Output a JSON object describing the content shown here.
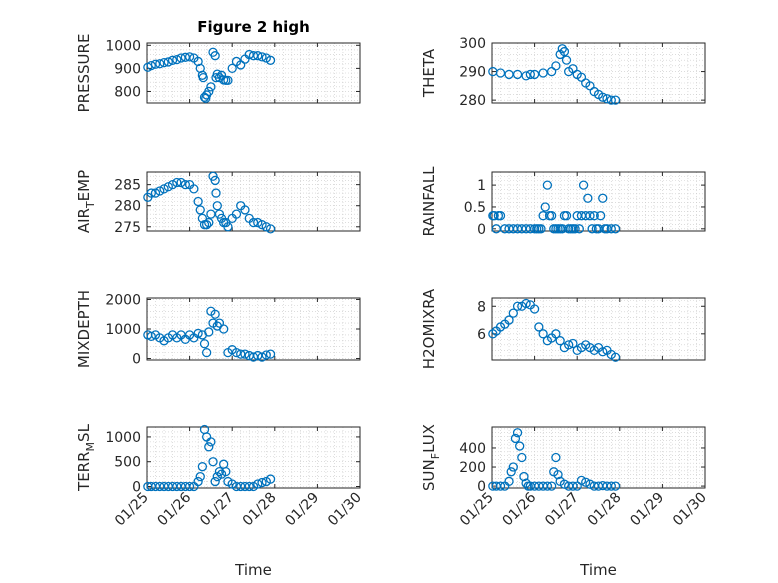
{
  "figure": {
    "marker_color": "#0072BD"
  },
  "x_axis": {
    "label": "Time",
    "tick_labels": [
      "01/25",
      "01/26",
      "01/27",
      "01/28",
      "01/29",
      "01/30"
    ],
    "xlim": [
      0,
      5
    ]
  },
  "chart_data": [
    {
      "type": "scatter",
      "title": "Figure 2 high",
      "ylabel": "PRESSURE",
      "ylim": [
        750,
        1010
      ],
      "yticks": [
        800,
        900,
        1000
      ],
      "grid": true,
      "x": [
        0.02,
        0.1,
        0.2,
        0.3,
        0.4,
        0.5,
        0.6,
        0.7,
        0.8,
        0.9,
        1.0,
        1.1,
        1.2,
        1.25,
        1.3,
        1.32,
        1.35,
        1.38,
        1.4,
        1.45,
        1.5,
        1.55,
        1.6,
        1.62,
        1.65,
        1.7,
        1.75,
        1.8,
        1.85,
        1.9,
        2.0,
        2.1,
        2.2,
        2.3,
        2.4,
        2.5,
        2.6,
        2.7,
        2.8,
        2.9
      ],
      "y": [
        905,
        912,
        918,
        920,
        925,
        928,
        935,
        938,
        945,
        948,
        950,
        945,
        930,
        900,
        870,
        860,
        775,
        770,
        785,
        800,
        820,
        970,
        955,
        860,
        875,
        860,
        870,
        850,
        848,
        848,
        900,
        930,
        915,
        940,
        960,
        955,
        955,
        950,
        945,
        935
      ]
    },
    {
      "type": "scatter",
      "title": "",
      "ylabel": "THETA",
      "ylim": [
        279,
        300
      ],
      "yticks": [
        280,
        290,
        300
      ],
      "grid": true,
      "x": [
        0.02,
        0.2,
        0.4,
        0.6,
        0.8,
        0.9,
        1.0,
        1.2,
        1.4,
        1.5,
        1.6,
        1.65,
        1.7,
        1.75,
        1.8,
        1.9,
        2.0,
        2.1,
        2.2,
        2.3,
        2.4,
        2.5,
        2.6,
        2.7,
        2.8,
        2.9
      ],
      "y": [
        290,
        289.5,
        289,
        289,
        288.5,
        289,
        289,
        289.5,
        290,
        292,
        296,
        298,
        297,
        294,
        290,
        291,
        289,
        288,
        286,
        285,
        283,
        282,
        281,
        280.5,
        280,
        280
      ]
    },
    {
      "type": "scatter",
      "title": "",
      "ylabel": "AIR_TEMP",
      "ylim": [
        274,
        288
      ],
      "yticks": [
        275,
        280,
        285
      ],
      "grid": true,
      "x": [
        0.02,
        0.1,
        0.2,
        0.3,
        0.4,
        0.5,
        0.6,
        0.7,
        0.8,
        0.9,
        1.0,
        1.1,
        1.2,
        1.25,
        1.3,
        1.35,
        1.4,
        1.45,
        1.5,
        1.55,
        1.6,
        1.62,
        1.65,
        1.7,
        1.75,
        1.8,
        1.85,
        1.9,
        2.0,
        2.1,
        2.2,
        2.3,
        2.4,
        2.5,
        2.6,
        2.7,
        2.8,
        2.9
      ],
      "y": [
        282,
        283,
        283,
        283.5,
        284,
        284.5,
        285,
        285.5,
        285.5,
        285,
        285,
        284,
        281,
        279,
        277,
        275.5,
        275.5,
        276,
        278,
        287,
        286,
        283,
        280,
        278,
        277,
        276,
        276,
        275,
        277,
        278,
        280,
        279,
        277,
        276,
        276,
        275.5,
        275,
        274.5
      ]
    },
    {
      "type": "scatter",
      "title": "",
      "ylabel": "RAINFALL",
      "ylim": [
        -0.05,
        1.3
      ],
      "yticks": [
        0,
        0.5,
        1
      ],
      "grid": true,
      "x": [
        0.02,
        0.05,
        0.1,
        0.15,
        0.2,
        0.3,
        0.4,
        0.5,
        0.6,
        0.7,
        0.8,
        0.9,
        1.0,
        1.05,
        1.1,
        1.15,
        1.2,
        1.25,
        1.3,
        1.35,
        1.4,
        1.45,
        1.5,
        1.55,
        1.6,
        1.65,
        1.7,
        1.75,
        1.8,
        1.85,
        1.9,
        1.95,
        2.0,
        2.05,
        2.1,
        2.15,
        2.2,
        2.25,
        2.3,
        2.35,
        2.4,
        2.45,
        2.5,
        2.55,
        2.6,
        2.65,
        2.7,
        2.8,
        2.9
      ],
      "y": [
        0.3,
        0.3,
        0,
        0.3,
        0.3,
        0,
        0,
        0,
        0,
        0,
        0,
        0,
        0,
        0,
        0,
        0,
        0.3,
        0.5,
        1,
        0.3,
        0.3,
        0,
        0,
        0,
        0,
        0,
        0.3,
        0.3,
        0,
        0,
        0,
        0,
        0.3,
        0,
        0.3,
        1,
        0.3,
        0.7,
        0.3,
        0,
        0.3,
        0,
        0,
        0.3,
        0.7,
        0,
        0,
        0,
        0
      ]
    },
    {
      "type": "scatter",
      "title": "",
      "ylabel": "MIXDEPTH",
      "ylim": [
        -50,
        2050
      ],
      "yticks": [
        0,
        1000,
        2000
      ],
      "grid": true,
      "x": [
        0.02,
        0.1,
        0.2,
        0.3,
        0.4,
        0.5,
        0.6,
        0.7,
        0.8,
        0.9,
        1.0,
        1.1,
        1.2,
        1.3,
        1.35,
        1.4,
        1.45,
        1.5,
        1.55,
        1.6,
        1.65,
        1.7,
        1.8,
        1.9,
        2.0,
        2.1,
        2.2,
        2.3,
        2.4,
        2.5,
        2.6,
        2.7,
        2.8,
        2.9
      ],
      "y": [
        800,
        750,
        800,
        700,
        600,
        700,
        800,
        700,
        800,
        650,
        800,
        700,
        850,
        800,
        500,
        200,
        900,
        1600,
        1200,
        1500,
        1100,
        1200,
        1000,
        200,
        300,
        200,
        150,
        150,
        100,
        50,
        100,
        50,
        120,
        150
      ]
    },
    {
      "type": "scatter",
      "title": "",
      "ylabel": "H2OMIXRA",
      "ylim": [
        4.1,
        8.6
      ],
      "yticks": [
        6,
        8
      ],
      "grid": true,
      "x": [
        0.02,
        0.1,
        0.2,
        0.3,
        0.4,
        0.5,
        0.6,
        0.7,
        0.8,
        0.9,
        1.0,
        1.1,
        1.2,
        1.3,
        1.4,
        1.5,
        1.6,
        1.7,
        1.8,
        1.9,
        2.0,
        2.1,
        2.2,
        2.3,
        2.4,
        2.5,
        2.6,
        2.7,
        2.8,
        2.9
      ],
      "y": [
        6,
        6.2,
        6.5,
        6.7,
        7,
        7.5,
        8,
        8,
        8.2,
        8.1,
        7.8,
        6.5,
        6,
        5.5,
        5.7,
        6,
        5.5,
        5,
        5.2,
        5.3,
        4.8,
        5,
        5.2,
        5,
        4.8,
        5,
        4.7,
        4.8,
        4.5,
        4.3
      ]
    },
    {
      "type": "scatter",
      "title": "",
      "ylabel": "TERR_MSL",
      "ylim": [
        -30,
        1200
      ],
      "yticks": [
        0,
        500,
        1000
      ],
      "grid": true,
      "x": [
        0.02,
        0.1,
        0.2,
        0.3,
        0.4,
        0.5,
        0.6,
        0.7,
        0.8,
        0.9,
        1.0,
        1.1,
        1.2,
        1.25,
        1.3,
        1.35,
        1.4,
        1.45,
        1.5,
        1.55,
        1.6,
        1.65,
        1.7,
        1.75,
        1.8,
        1.85,
        1.9,
        2.0,
        2.1,
        2.2,
        2.3,
        2.4,
        2.5,
        2.6,
        2.7,
        2.8,
        2.9
      ],
      "y": [
        0,
        0,
        0,
        0,
        0,
        0,
        0,
        0,
        0,
        0,
        0,
        0,
        100,
        200,
        400,
        1150,
        1000,
        800,
        900,
        500,
        100,
        200,
        300,
        250,
        450,
        300,
        100,
        50,
        0,
        0,
        0,
        0,
        0,
        50,
        80,
        100,
        150
      ]
    },
    {
      "type": "scatter",
      "title": "",
      "ylabel": "SUN_FLUX",
      "ylim": [
        -20,
        620
      ],
      "yticks": [
        0,
        200,
        400
      ],
      "grid": true,
      "x": [
        0.02,
        0.1,
        0.2,
        0.3,
        0.4,
        0.45,
        0.5,
        0.55,
        0.6,
        0.65,
        0.7,
        0.75,
        0.8,
        0.85,
        0.9,
        1.0,
        1.1,
        1.2,
        1.3,
        1.4,
        1.45,
        1.5,
        1.55,
        1.6,
        1.7,
        1.8,
        1.9,
        2.0,
        2.1,
        2.2,
        2.3,
        2.4,
        2.5,
        2.6,
        2.7,
        2.8,
        2.9
      ],
      "y": [
        0,
        0,
        0,
        0,
        50,
        150,
        200,
        500,
        560,
        420,
        300,
        100,
        30,
        0,
        0,
        0,
        0,
        0,
        0,
        0,
        150,
        300,
        120,
        50,
        20,
        0,
        0,
        0,
        60,
        40,
        20,
        0,
        0,
        5,
        0,
        0,
        0
      ]
    }
  ]
}
